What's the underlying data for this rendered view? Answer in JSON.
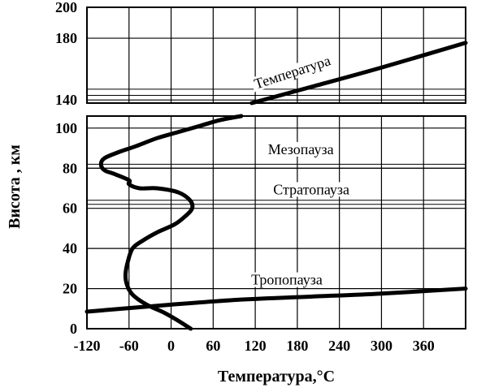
{
  "chart_data": {
    "type": "line",
    "title": "",
    "xlabel": "Температура,°C",
    "ylabel": "Висота , км",
    "xlim": [
      -120,
      420
    ],
    "x_ticks": [
      -120,
      -60,
      0,
      60,
      120,
      180,
      240,
      300,
      360
    ],
    "x_ticks_at": [
      -120,
      -60,
      0,
      60,
      120,
      180,
      240,
      300,
      360
    ],
    "panels": [
      {
        "id": "lower",
        "ylim": [
          0,
          106
        ],
        "y_ticks": [
          0,
          20,
          40,
          60,
          80,
          100
        ],
        "reference_lines_km": [
          20,
          80,
          82,
          62,
          64
        ],
        "annotations": [
          {
            "text": "Мезопауза",
            "x": 185,
            "y": 87
          },
          {
            "text": "Стратопауза",
            "x": 200,
            "y": 67
          },
          {
            "text": "Тропопауза",
            "x": 165,
            "y": 22
          }
        ]
      },
      {
        "id": "upper",
        "ylim": [
          138,
          200
        ],
        "y_ticks": [
          140,
          180,
          200
        ],
        "reference_lines_km": [
          143,
          147
        ],
        "annotations": [
          {
            "text": "Температура",
            "x": 175,
            "y": 155,
            "rotate": -18
          }
        ]
      }
    ],
    "series": [
      {
        "name": "",
        "panel": "lower",
        "x": [
          28,
          10,
          -10,
          -35,
          -55,
          -63,
          -65,
          -62,
          -55,
          -40,
          -20,
          5,
          20,
          30,
          27,
          10,
          -20,
          -45,
          -60,
          -60,
          -80,
          -95,
          -100,
          -95,
          -75,
          -50,
          -20,
          10,
          40,
          70,
          100
        ],
        "y": [
          0,
          4,
          8,
          12,
          17,
          22,
          27,
          33,
          40,
          44,
          48,
          52,
          56,
          60,
          64,
          68,
          70,
          70,
          72,
          74,
          77,
          79,
          82,
          85,
          88,
          91,
          95,
          98,
          101,
          104,
          106
        ]
      },
      {
        "name": "",
        "panel": "lower",
        "x": [
          -135,
          0,
          100,
          200,
          300,
          420
        ],
        "y": [
          8.5,
          12,
          14.5,
          16,
          17.5,
          20
        ]
      },
      {
        "name": "",
        "panel": "upper",
        "x": [
          115,
          200,
          300,
          420
        ],
        "y": [
          138,
          148.5,
          161,
          177
        ]
      }
    ]
  }
}
